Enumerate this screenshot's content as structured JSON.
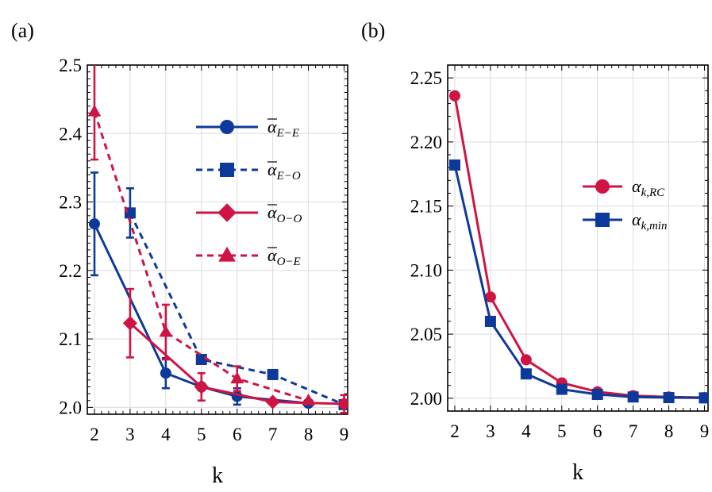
{
  "panels": {
    "a": "(a)",
    "b": "(b)"
  },
  "colors": {
    "blue": "#0d3a9a",
    "red": "#cf1444"
  },
  "chart_data": [
    {
      "type": "line",
      "panel": "(a)",
      "xlabel": "k",
      "ylabel": "",
      "xlim": [
        1.8,
        9.1
      ],
      "ylim": [
        1.99,
        2.5
      ],
      "xticks": [
        2,
        3,
        4,
        5,
        6,
        7,
        8,
        9
      ],
      "yticks": [
        2.0,
        2.1,
        2.2,
        2.3,
        2.4,
        2.5
      ],
      "ytick_labels": [
        "2.0",
        "2.1",
        "2.2",
        "2.3",
        "2.4",
        "2.5"
      ],
      "grid": true,
      "legend_position": "right",
      "series": [
        {
          "name": "ᾱE−E",
          "base": "α",
          "subscript": "E−E",
          "overline": true,
          "color": "#0d3a9a",
          "dash": "solid",
          "marker": "circle",
          "x": [
            2,
            4,
            5,
            6,
            8
          ],
          "y": [
            2.268,
            2.05,
            2.03,
            2.016,
            2.006
          ],
          "err": [
            0.075,
            0.022,
            0.0,
            0.012,
            0.0
          ]
        },
        {
          "name": "ᾱE−O",
          "base": "α",
          "subscript": "E−O",
          "overline": true,
          "color": "#0d3a9a",
          "dash": "dashed",
          "marker": "square",
          "x": [
            3,
            5,
            7,
            9
          ],
          "y": [
            2.284,
            2.07,
            2.048,
            2.004
          ],
          "err": [
            0.036,
            0.006,
            0.0,
            0.0
          ]
        },
        {
          "name": "ᾱO−O",
          "base": "α",
          "subscript": "O−O",
          "overline": true,
          "color": "#cf1444",
          "dash": "solid",
          "marker": "diamond",
          "x": [
            3,
            5,
            7,
            9
          ],
          "y": [
            2.123,
            2.03,
            2.008,
            2.005
          ],
          "err": [
            0.05,
            0.02,
            0.0,
            0.013
          ]
        },
        {
          "name": "ᾱO−E",
          "base": "α",
          "subscript": "O−E",
          "overline": true,
          "color": "#cf1444",
          "dash": "dashed",
          "marker": "triangle",
          "x": [
            2,
            4,
            6,
            8
          ],
          "y": [
            2.432,
            2.11,
            2.042,
            2.01
          ],
          "err": [
            0.07,
            0.04,
            0.018,
            0.0
          ]
        }
      ]
    },
    {
      "type": "line",
      "panel": "(b)",
      "xlabel": "k",
      "ylabel": "",
      "xlim": [
        1.8,
        9.1
      ],
      "ylim": [
        1.99,
        2.26
      ],
      "xticks": [
        2,
        3,
        4,
        5,
        6,
        7,
        8,
        9
      ],
      "yticks": [
        2.0,
        2.05,
        2.1,
        2.15,
        2.2,
        2.25
      ],
      "ytick_labels": [
        "2.00",
        "2.05",
        "2.10",
        "2.15",
        "2.20",
        "2.25"
      ],
      "grid": true,
      "legend_position": "right",
      "series": [
        {
          "name": "αk,RC",
          "base": "α",
          "subscript": "k,RC",
          "overline": false,
          "color": "#cf1444",
          "dash": "solid",
          "marker": "circle",
          "x": [
            2,
            3,
            4,
            5,
            6,
            7,
            8,
            9
          ],
          "y": [
            2.236,
            2.079,
            2.03,
            2.012,
            2.005,
            2.002,
            2.001,
            2.0005
          ]
        },
        {
          "name": "αk,min",
          "base": "α",
          "subscript": "k,min",
          "overline": false,
          "color": "#0d3a9a",
          "dash": "solid",
          "marker": "square",
          "x": [
            2,
            3,
            4,
            5,
            6,
            7,
            8,
            9
          ],
          "y": [
            2.182,
            2.06,
            2.019,
            2.007,
            2.003,
            2.001,
            2.0005,
            2.0003
          ]
        }
      ]
    }
  ]
}
